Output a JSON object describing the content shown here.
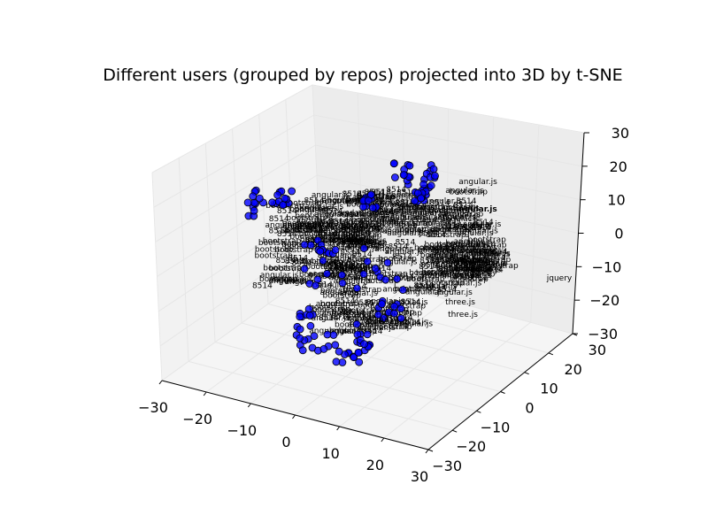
{
  "chart_data": {
    "type": "scatter",
    "title": "Different users (grouped by repos) projected into 3D by t-SNE",
    "xlabel": "",
    "ylabel": "",
    "zlabel": "",
    "xlim": [
      -30,
      30
    ],
    "ylim": [
      -30,
      30
    ],
    "zlim": [
      -30,
      30
    ],
    "x_ticks": [
      "−30",
      "−20",
      "−10",
      "0",
      "10",
      "20",
      "30"
    ],
    "y_ticks": [
      "−30",
      "−20",
      "−10",
      "0",
      "10",
      "20",
      "30"
    ],
    "z_ticks": [
      "−30",
      "−20",
      "−10",
      "0",
      "10",
      "20",
      "30"
    ],
    "grid": true,
    "marker_color": "#0000ff",
    "marker_edge_color": "#000000",
    "annotations": [
      "angular.js",
      "angular.js",
      "jquery",
      "three.js",
      "three.js",
      "bootstrap",
      "8514",
      "8514",
      "8514",
      "8514",
      "angular.js"
    ]
  }
}
